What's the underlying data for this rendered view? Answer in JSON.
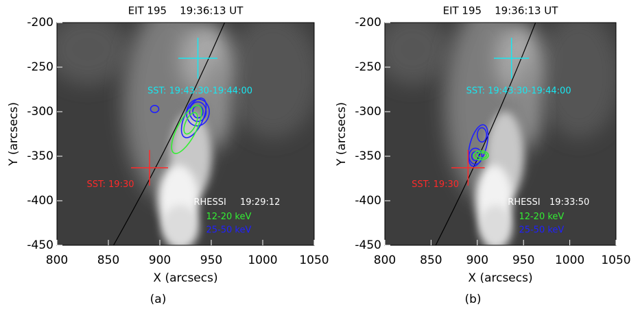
{
  "chart_data": [
    {
      "type": "image",
      "title": "EIT 195    19:36:13 UT",
      "xlabel": "X (arcsecs)",
      "ylabel": "Y (arcsecs)",
      "xlim": [
        800,
        1050
      ],
      "ylim": [
        -450,
        -200
      ],
      "xticks": [
        800,
        850,
        900,
        950,
        1000,
        1050
      ],
      "yticks": [
        -450,
        -400,
        -350,
        -300,
        -250,
        -200
      ],
      "annotations": [
        {
          "text": "SST: 19:43:30-19:44:00",
          "color": "#19e6f0"
        },
        {
          "text": "SST: 19:30",
          "color": "#ff2a2a"
        },
        {
          "text": "RHESSI",
          "color": "#ffffff"
        },
        {
          "text": "19:29:12",
          "color": "#ffffff"
        },
        {
          "text": "12-20 keV",
          "color": "#33ee33"
        },
        {
          "text": "25-50 keV",
          "color": "#2020ff"
        }
      ],
      "panel_label": "(a)"
    },
    {
      "type": "image",
      "title": "EIT 195    19:36:13 UT",
      "xlabel": "X (arcsecs)",
      "ylabel": "Y (arcsecs)",
      "xlim": [
        800,
        1050
      ],
      "ylim": [
        -450,
        -200
      ],
      "xticks": [
        800,
        850,
        900,
        950,
        1000,
        1050
      ],
      "yticks": [
        -450,
        -400,
        -350,
        -300,
        -250,
        -200
      ],
      "annotations": [
        {
          "text": "SST: 19:43:30-19:44:00",
          "color": "#19e6f0"
        },
        {
          "text": "SST: 19:30",
          "color": "#ff2a2a"
        },
        {
          "text": "RHESSI",
          "color": "#ffffff"
        },
        {
          "text": "19:33:50",
          "color": "#ffffff"
        },
        {
          "text": "12-20 keV",
          "color": "#33ee33"
        },
        {
          "text": "25-50 keV",
          "color": "#2020ff"
        }
      ],
      "panel_label": "(b)"
    }
  ]
}
